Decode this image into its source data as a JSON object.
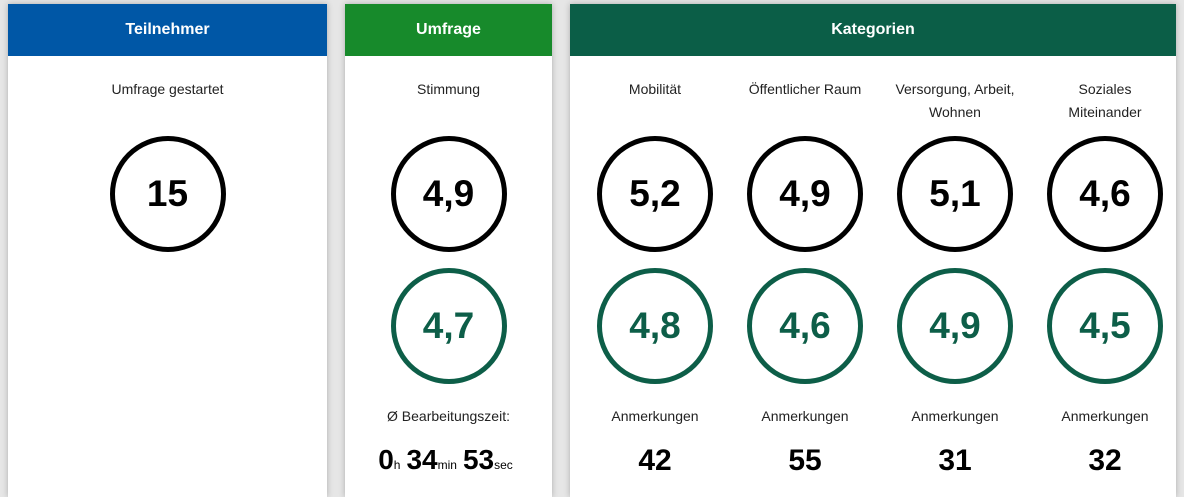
{
  "participants": {
    "header": "Teilnehmer",
    "label": "Umfrage gestartet",
    "value": "15"
  },
  "survey": {
    "header": "Umfrage",
    "label": "Stimmung",
    "value_black": "4,9",
    "value_green": "4,7",
    "time_label": "Ø Bearbeitungszeit:",
    "time": [
      {
        "value": "0",
        "unit": "h"
      },
      {
        "value": "34",
        "unit": "min"
      },
      {
        "value": "53",
        "unit": "sec"
      }
    ]
  },
  "categories": {
    "header": "Kategorien",
    "items": [
      {
        "label": "Mobilität",
        "value_black": "5,2",
        "value_green": "4,8",
        "notes_label": "Anmerkungen",
        "notes": "42"
      },
      {
        "label": "Öffentlicher Raum",
        "value_black": "4,9",
        "value_green": "4,6",
        "notes_label": "Anmerkungen",
        "notes": "55"
      },
      {
        "label": "Versorgung, Arbeit, Wohnen",
        "value_black": "5,1",
        "value_green": "4,9",
        "notes_label": "Anmerkungen",
        "notes": "31"
      },
      {
        "label": "Soziales Miteinander",
        "value_black": "4,6",
        "value_green": "4,5",
        "notes_label": "Anmerkungen",
        "notes": "32"
      }
    ]
  }
}
